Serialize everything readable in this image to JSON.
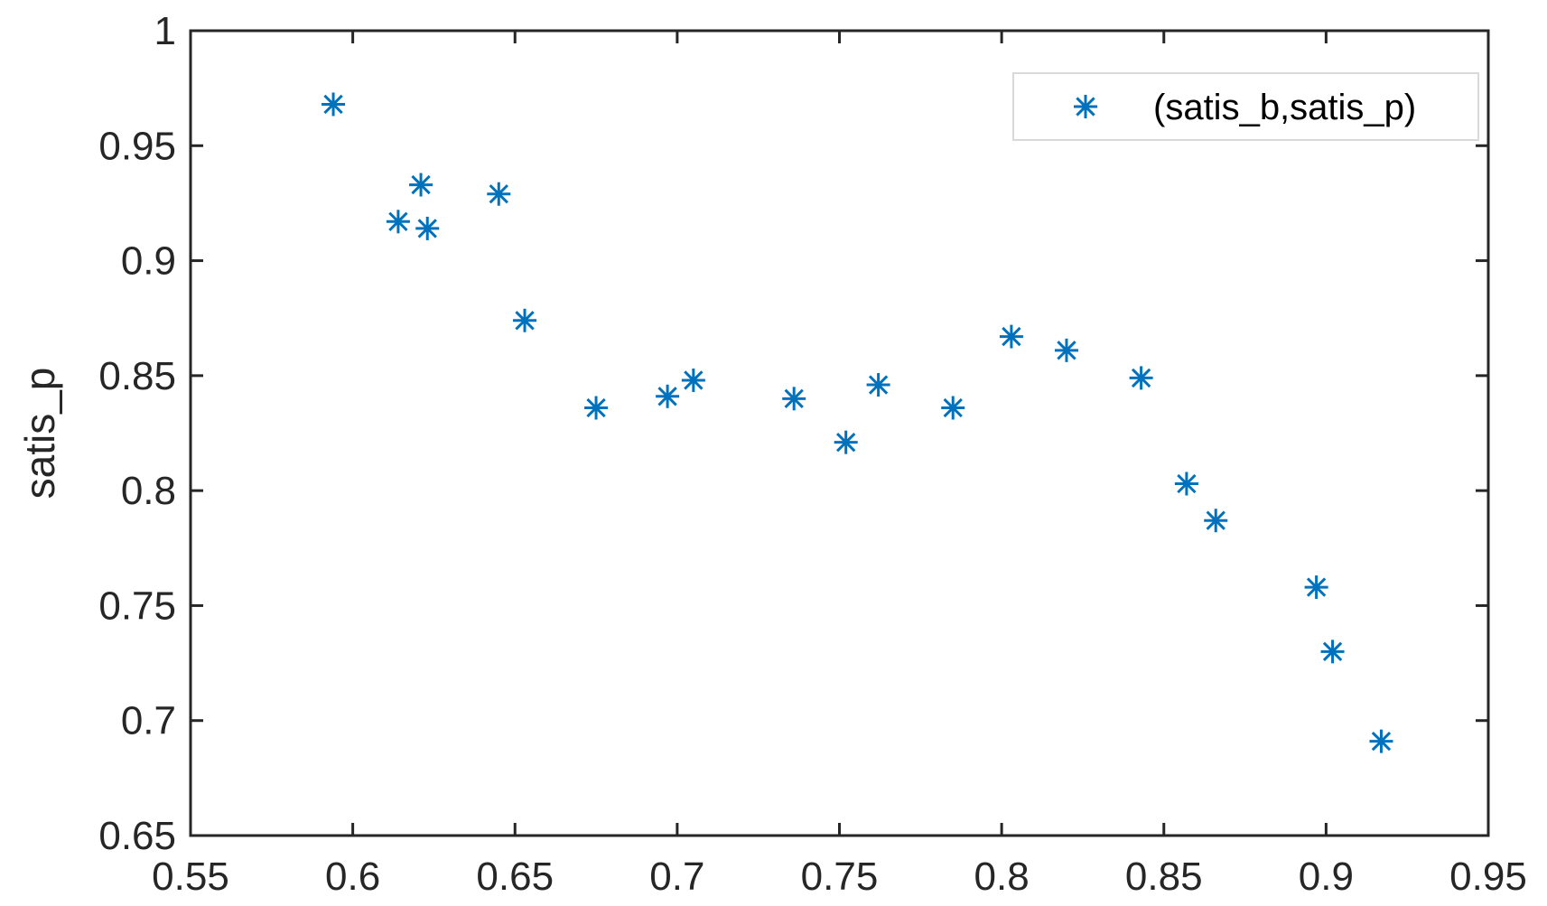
{
  "chart_data": {
    "type": "scatter",
    "title": "",
    "xlabel": "",
    "ylabel": "satis_p",
    "xlim": [
      0.55,
      0.95
    ],
    "ylim": [
      0.65,
      1.0
    ],
    "xticks": [
      "0.55",
      "0.6",
      "0.65",
      "0.7",
      "0.75",
      "0.8",
      "0.85",
      "0.9",
      "0.95"
    ],
    "yticks": [
      "0.65",
      "0.7",
      "0.75",
      "0.8",
      "0.85",
      "0.9",
      "0.95",
      "1"
    ],
    "grid": false,
    "legend_position": "top-right",
    "marker": "asterisk",
    "color": "#0072BD",
    "series": [
      {
        "name": "(satis_b,satis_p)",
        "points": [
          [
            0.594,
            0.968
          ],
          [
            0.614,
            0.917
          ],
          [
            0.621,
            0.933
          ],
          [
            0.623,
            0.914
          ],
          [
            0.645,
            0.929
          ],
          [
            0.653,
            0.874
          ],
          [
            0.675,
            0.836
          ],
          [
            0.697,
            0.841
          ],
          [
            0.705,
            0.848
          ],
          [
            0.736,
            0.84
          ],
          [
            0.752,
            0.821
          ],
          [
            0.762,
            0.846
          ],
          [
            0.785,
            0.836
          ],
          [
            0.803,
            0.867
          ],
          [
            0.82,
            0.861
          ],
          [
            0.843,
            0.849
          ],
          [
            0.857,
            0.803
          ],
          [
            0.866,
            0.787
          ],
          [
            0.897,
            0.758
          ],
          [
            0.902,
            0.73
          ],
          [
            0.917,
            0.691
          ]
        ]
      }
    ]
  }
}
